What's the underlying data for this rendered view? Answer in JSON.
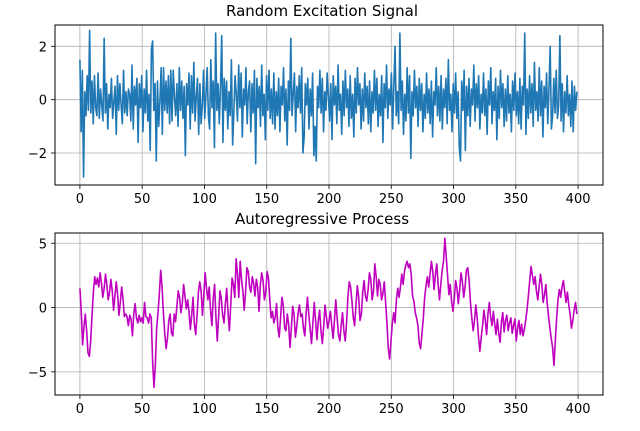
{
  "chart_data": [
    {
      "type": "line",
      "title": "Random Excitation Signal",
      "xlabel": "",
      "ylabel": "",
      "xlim": [
        -20,
        420
      ],
      "ylim": [
        -3.2,
        2.8
      ],
      "xticks": [
        0,
        50,
        100,
        150,
        200,
        250,
        300,
        350,
        400
      ],
      "yticks": [
        -2,
        0,
        2
      ],
      "ytick_labels": [
        "−2",
        "0",
        "2"
      ],
      "grid": true,
      "color": "#1f77b4",
      "x_range": [
        0,
        399
      ],
      "values": [
        1.5,
        -1.2,
        1.1,
        -2.9,
        0.3,
        -0.6,
        0.9,
        -0.4,
        2.6,
        -0.5,
        0.7,
        -0.9,
        0.9,
        -0.3,
        -0.6,
        1.0,
        -0.7,
        0.4,
        -0.2,
        -0.8,
        2.3,
        -0.5,
        0.6,
        -1.1,
        0.2,
        -0.3,
        0.8,
        -0.7,
        -0.1,
        0.5,
        -1.3,
        0.9,
        -0.4,
        0.6,
        -0.2,
        -0.9,
        1.1,
        -0.5,
        0.3,
        -0.6,
        0.4,
        0.2,
        -0.8,
        1.3,
        -1.1,
        0.5,
        -0.2,
        0.8,
        -1.6,
        0.6,
        -0.3,
        0.9,
        -1.2,
        0.4,
        -0.5,
        1.1,
        -0.8,
        0.2,
        -1.9,
        1.9,
        2.2,
        -0.4,
        0.6,
        -2.3,
        0.7,
        -1.0,
        -0.1,
        1.2,
        -1.3,
        1.2,
        -0.4,
        0.7,
        -0.5,
        0.9,
        -0.9,
        1.1,
        -0.8,
        1.1,
        0.1,
        -0.6,
        0.6,
        -1.0,
        1.2,
        -0.4,
        0.7,
        -0.7,
        0.5,
        -2.1,
        0.6,
        -0.2,
        1.0,
        -1.1,
        0.9,
        -0.5,
        1.4,
        -0.8,
        0.1,
        0.8,
        -1.3,
        0.6,
        -0.9,
        -0.2,
        1.1,
        -0.7,
        0.2,
        1.2,
        -0.6,
        -1.1,
        1.5,
        -0.3,
        0.7,
        -1.8,
        2.5,
        -0.4,
        0.6,
        -0.9,
        0.5,
        2.4,
        -1.6,
        0.8,
        -0.4,
        0.7,
        -1.1,
        0.3,
        -0.6,
        1.5,
        -1.7,
        -0.5,
        0.9,
        0.2,
        -0.8,
        1.3,
        -0.3,
        1.0,
        -1.4,
        0.4,
        -0.2,
        1.2,
        -0.9,
        0.3,
        0.7,
        -1.2,
        0.6,
        -0.5,
        1.1,
        -2.4,
        0.8,
        -0.3,
        0.5,
        -1.0,
        1.3,
        -0.6,
        0.2,
        -1.5,
        0.9,
        -0.4,
        1.1,
        -0.7,
        0.4,
        -0.9,
        1.0,
        -1.1,
        0.3,
        -0.6,
        0.8,
        -1.2,
        0.5,
        -0.2,
        1.2,
        -0.8,
        0.4,
        -1.7,
        0.7,
        -0.4,
        2.3,
        -0.6,
        0.2,
        1.0,
        -1.2,
        0.5,
        -0.3,
        0.9,
        -0.5,
        1.2,
        -2.0,
        -1.4,
        0.6,
        -0.2,
        0.8,
        -1.1,
        0.4,
        -0.6,
        1.0,
        -2.1,
        -1.0,
        -2.3,
        0.5,
        -0.3,
        1.1,
        -0.5,
        0.8,
        -1.2,
        0.3,
        -0.4,
        1.0,
        0.1,
        -0.8,
        0.6,
        -1.5,
        0.9,
        -0.2,
        0.5,
        -0.9,
        1.3,
        -0.4,
        0.2,
        -1.3,
        0.7,
        -0.6,
        1.1,
        -0.3,
        0.4,
        -1.0,
        0.9,
        -0.7,
        0.2,
        -1.4,
        0.8,
        -0.5,
        1.2,
        -0.2,
        0.6,
        -1.1,
        0.4,
        -0.8,
        1.0,
        -0.3,
        0.5,
        -0.9,
        0.7,
        -1.2,
        0.3,
        -0.5,
        1.1,
        -0.4,
        0.8,
        -1.0,
        0.2,
        -0.6,
        0.9,
        -1.6,
        0.6,
        -0.3,
        1.3,
        -0.7,
        0.4,
        -0.2,
        1.0,
        -1.1,
        0.5,
        2.0,
        -0.6,
        0.3,
        -0.9,
        2.5,
        -0.4,
        0.7,
        -1.3,
        0.2,
        -0.8,
        1.2,
        -0.5,
        0.9,
        -2.2,
        0.3,
        -0.6,
        1.1,
        -0.3,
        0.5,
        -1.0,
        0.8,
        -0.4,
        0.6,
        -1.2,
        0.2,
        -0.7,
        1.0,
        -0.5,
        0.4,
        -0.9,
        0.7,
        -1.4,
        0.3,
        -0.2,
        1.2,
        -0.6,
        0.5,
        -0.8,
        0.9,
        -1.1,
        0.4,
        -0.3,
        0.8,
        -0.9,
        1.5,
        -0.4,
        0.2,
        -1.2,
        0.6,
        -0.5,
        1.0,
        -0.7,
        0.3,
        -1.8,
        -2.3,
        0.7,
        -0.4,
        1.1,
        -1.9,
        0.5,
        -0.6,
        0.8,
        -1.0,
        0.4,
        -0.2,
        1.3,
        -0.8,
        0.6,
        -0.3,
        0.9,
        -1.1,
        0.2,
        -0.5,
        1.0,
        -0.6,
        0.4,
        -1.3,
        0.7,
        -0.2,
        1.2,
        -0.9,
        0.3,
        -0.4,
        0.8,
        -1.5,
        0.5,
        -0.7,
        1.1,
        -0.3,
        0.6,
        -1.0,
        0.4,
        -0.8,
        0.9,
        -0.5,
        0.2,
        -1.2,
        0.7,
        -0.4,
        1.0,
        -0.6,
        0.3,
        -0.9,
        0.8,
        -1.1,
        0.5,
        -0.2,
        2.5,
        -1.3,
        0.4,
        -0.7,
        0.9,
        -0.5,
        0.6,
        -1.0,
        1.4,
        -0.4,
        0.3,
        -0.8,
        1.2,
        -0.6,
        0.7,
        -1.4,
        0.5,
        -0.3,
        1.0,
        -0.9,
        0.4,
        2.0,
        -1.1,
        -0.6,
        0.8,
        -0.5,
        1.1,
        -0.7,
        -0.2,
        2.4,
        -0.8,
        0.6,
        -1.2,
        0.3,
        -0.5,
        0.9,
        -0.6,
        0.2,
        -1.0,
        0.7,
        -1.2,
        0.5,
        -0.4,
        0.3
      ]
    },
    {
      "type": "line",
      "title": "Autoregressive Process",
      "xlabel": "",
      "ylabel": "",
      "xlim": [
        -20,
        420
      ],
      "ylim": [
        -6.8,
        5.8
      ],
      "xticks": [
        0,
        50,
        100,
        150,
        200,
        250,
        300,
        350,
        400
      ],
      "yticks": [
        -5,
        0,
        5
      ],
      "ytick_labels": [
        "−5",
        "0",
        "5"
      ],
      "grid": true,
      "color": "#bf00bf",
      "x_range": [
        0,
        399
      ],
      "values": [
        1.5,
        -0.3,
        -2.9,
        -1.5,
        -0.5,
        -1.8,
        -3.5,
        -3.8,
        -2.6,
        -0.6,
        1.2,
        2.4,
        1.8,
        2.3,
        1.6,
        2.7,
        1.9,
        0.8,
        1.5,
        2.6,
        1.8,
        0.6,
        1.2,
        2.2,
        1.3,
        -0.2,
        0.9,
        2.0,
        1.0,
        -0.6,
        0.4,
        1.6,
        0.7,
        -0.7,
        -0.5,
        -0.7,
        -1.4,
        -0.6,
        -0.9,
        -2.2,
        -0.5,
        0.3,
        -0.8,
        -1.2,
        -0.6,
        -1.1,
        -0.8,
        -1.2,
        0.4,
        -0.7,
        -0.8,
        -1.2,
        -0.5,
        -0.8,
        -4.2,
        -6.2,
        -4.5,
        -1.6,
        -0.4,
        1.1,
        2.9,
        1.6,
        -0.4,
        -2.0,
        -3.2,
        -2.4,
        -1.0,
        -0.5,
        -2.0,
        -2.2,
        -0.5,
        -1.1,
        0.1,
        1.3,
        0.8,
        -0.4,
        0.3,
        1.8,
        0.9,
        -0.1,
        0.6,
        -0.3,
        -1.7,
        -0.6,
        0.8,
        -1.3,
        -2.1,
        -0.6,
        1.2,
        2.0,
        1.3,
        -0.6,
        1.0,
        2.7,
        1.5,
        0.6,
        1.6,
        -0.2,
        -1.4,
        0.7,
        1.8,
        -0.7,
        -2.6,
        -0.7,
        1.3,
        0.7,
        -0.6,
        -1.2,
        0.3,
        1.5,
        -0.4,
        -1.8,
        0.2,
        2.3,
        1.8,
        0.8,
        3.8,
        2.6,
        0.8,
        3.6,
        2.2,
        1.3,
        -0.2,
        1.2,
        3.1,
        2.8,
        1.6,
        1.2,
        2.4,
        1.9,
        0.9,
        2.2,
        1.6,
        -0.3,
        1.8,
        2.7,
        2.1,
        0.6,
        1.2,
        2.8,
        2.3,
        0.6,
        -0.8,
        -0.3,
        -1.2,
        -0.8,
        0.3,
        -1.6,
        -2.3,
        -0.8,
        0.8,
        0.2,
        -1.6,
        -1.8,
        -0.5,
        -1.3,
        -3.1,
        -1.6,
        0.1,
        -0.5,
        -2.3,
        -1.5,
        -0.4,
        0.2,
        -0.7,
        -0.5,
        -1.6,
        -2.2,
        -0.4,
        0.8,
        -0.6,
        -1.7,
        -2.8,
        -1.2,
        0.4,
        -1.0,
        -2.5,
        -1.0,
        -0.2,
        -1.8,
        -2.8,
        -1.5,
        0.2,
        -0.7,
        -1.6,
        -1.0,
        -0.3,
        -1.4,
        -2.4,
        -1.0,
        0.6,
        -0.8,
        -2.1,
        -2.6,
        -1.4,
        -0.4,
        -1.8,
        -2.6,
        -1.2,
        0.8,
        2.0,
        1.6,
        0.5,
        -0.8,
        -1.4,
        0.2,
        1.7,
        0.8,
        -1.0,
        -0.5,
        1.2,
        2.1,
        0.9,
        0.5,
        1.4,
        2.7,
        2.2,
        0.6,
        1.3,
        3.4,
        2.4,
        0.9,
        2.2,
        1.8,
        0.6,
        1.1,
        2.0,
        0.4,
        -1.2,
        -3.2,
        -4.0,
        -2.6,
        -1.2,
        -0.4,
        -1.2,
        0.6,
        1.5,
        0.8,
        1.6,
        2.6,
        1.8,
        2.8,
        3.3,
        3.6,
        3.1,
        3.4,
        2.6,
        0.9,
        0.5,
        -0.4,
        -0.8,
        -1.4,
        -2.8,
        -3.2,
        -2.0,
        -0.8,
        0.8,
        1.7,
        2.4,
        1.6,
        2.6,
        3.6,
        2.8,
        1.4,
        2.6,
        3.4,
        1.8,
        0.6,
        1.8,
        2.9,
        3.6,
        5.4,
        4.0,
        2.5,
        1.0,
        1.8,
        0.5,
        -0.3,
        0.7,
        2.1,
        1.5,
        0.3,
        1.4,
        2.7,
        2.0,
        0.8,
        1.6,
        2.9,
        3.1,
        2.1,
        0.4,
        -0.8,
        -1.8,
        -1.0,
        0.2,
        -0.8,
        -2.3,
        -3.4,
        -2.3,
        -1.4,
        -0.2,
        -1.0,
        -2.1,
        -0.5,
        0.4,
        -0.8,
        -1.4,
        -0.3,
        -1.3,
        -2.1,
        -0.9,
        -2.0,
        -2.7,
        -1.1,
        -0.4,
        -1.9,
        -1.0,
        -0.6,
        -1.8,
        -1.2,
        -0.8,
        -2.0,
        -1.4,
        -0.9,
        -2.6,
        -1.6,
        -1.0,
        -2.1,
        -1.3,
        -2.2,
        -1.7,
        -1.0,
        -0.2,
        0.9,
        2.1,
        3.2,
        2.5,
        1.8,
        2.4,
        1.3,
        0.6,
        1.6,
        2.6,
        1.8,
        0.4,
        1.0,
        1.8,
        0.3,
        -0.7,
        -1.6,
        -2.4,
        -3.1,
        -4.5,
        -2.6,
        -0.8,
        0.6,
        1.4,
        0.8,
        1.6,
        2.1,
        1.2,
        0.4,
        1.2,
        0.2,
        -0.5,
        -1.6,
        -1.0,
        -0.2,
        0.4,
        -0.5
      ]
    }
  ]
}
